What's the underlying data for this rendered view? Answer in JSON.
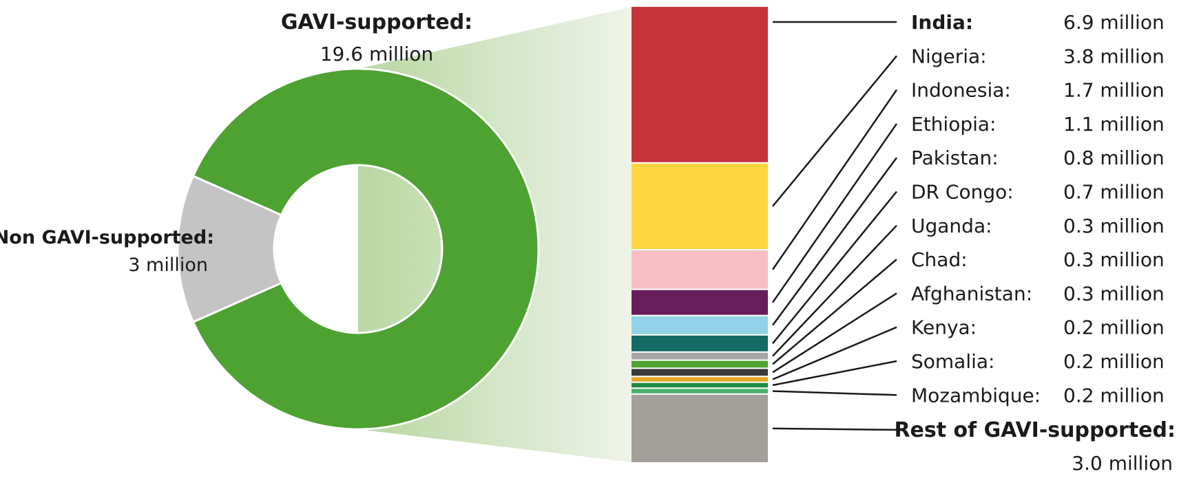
{
  "chart_data": [
    {
      "type": "pie",
      "labels": [
        "GAVI-supported:",
        "Non GAVI-supported:"
      ],
      "values": [
        19.6,
        3
      ],
      "value_labels": [
        "19.6 million",
        "3 million"
      ],
      "colors": [
        "#4ea232",
        "#c4c4c4"
      ],
      "hole": "donut"
    },
    {
      "type": "bar",
      "stacked": true,
      "categories": [
        "India:",
        "Nigeria:",
        "Indonesia:",
        "Ethiopia:",
        "Pakistan:",
        "DR Congo:",
        "Uganda:",
        "Chad:",
        "Afghanistan:",
        "Kenya:",
        "Somalia:",
        "Mozambique:",
        "Rest of GAVI-supported:"
      ],
      "values": [
        6.9,
        3.8,
        1.7,
        1.1,
        0.8,
        0.7,
        0.3,
        0.3,
        0.3,
        0.2,
        0.2,
        0.2,
        3.0
      ],
      "value_labels": [
        "6.9 million",
        "3.8 million",
        "1.7 million",
        "1.1 million",
        "0.8 million",
        "0.7 million",
        "0.3 million",
        "0.3 million",
        "0.3 million",
        "0.2 million",
        "0.2 million",
        "0.2 million",
        "3.0 million"
      ],
      "colors": [
        "#c8323a",
        "#fdd641",
        "#f7bec4",
        "#671d58",
        "#93d2e6",
        "#136b66",
        "#a6a6a6",
        "#4ea232",
        "#3a3a3a",
        "#e2a82a",
        "#1f8a48",
        "#49b06b",
        "#a3a09c"
      ],
      "emphasis": [
        "India:",
        "Rest of GAVI-supported:"
      ]
    }
  ]
}
